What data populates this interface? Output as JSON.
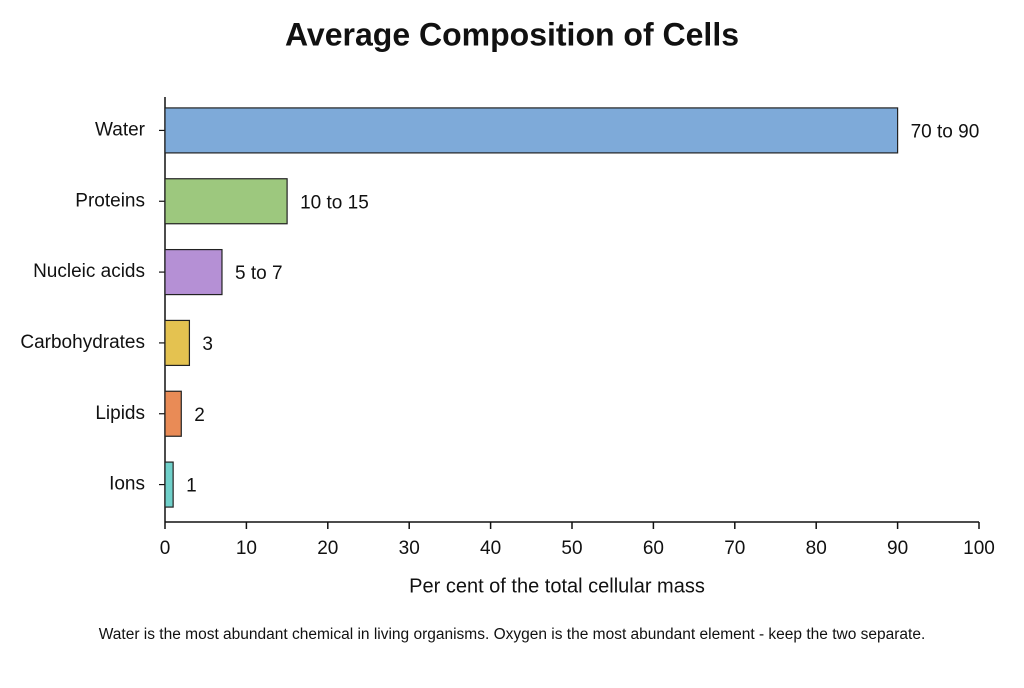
{
  "chart_data": {
    "type": "barh",
    "title": "Average Composition of Cells",
    "xlabel": "Per cent of the total cellular mass",
    "annotation": "Water is the most abundant chemical in living organisms. Oxygen is the most abundant element - keep the two separate.",
    "categories": [
      "Water",
      "Proteins",
      "Nucleic acids",
      "Carbohydrates",
      "Lipids",
      "Ions"
    ],
    "values": [
      90,
      15,
      7,
      3,
      2,
      1
    ],
    "value_labels": [
      "70 to 90",
      "10 to 15",
      "5 to 7",
      "3",
      "2",
      "1"
    ],
    "colors": [
      "#7eaad9",
      "#9dc87e",
      "#b590d5",
      "#e4c250",
      "#e98b56",
      "#70d0ca"
    ],
    "xlim": [
      0,
      100
    ],
    "xticks": [
      0,
      10,
      20,
      30,
      40,
      50,
      60,
      70,
      80,
      90,
      100
    ],
    "grid": false
  }
}
